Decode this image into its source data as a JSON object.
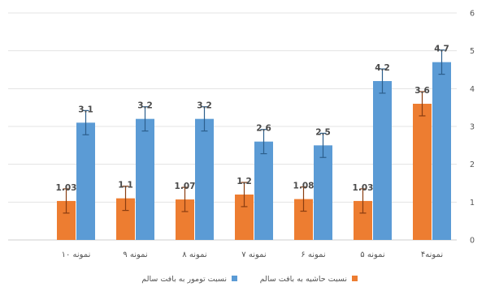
{
  "chart_data": {
    "type": "bar",
    "categories": [
      "نمونه ۴",
      "نمونه ۵",
      "نمونه ۶",
      "نمونه ۷",
      "نمونه ۸",
      "نمونه ۹",
      "نمونه ۱۰"
    ],
    "category_labels": [
      "نمونه۴",
      "نمونه ۵",
      "نمونه ۶",
      "نمونه ۷",
      "نمونه ۸",
      "نمونه ۹",
      "نمونه ۱۰"
    ],
    "series": [
      {
        "name": "نسبت حاشیه به بافت سالم",
        "color": "#ed7d31",
        "values": [
          3.6,
          1.03,
          1.08,
          1.2,
          1.07,
          1.1,
          1.03
        ],
        "labels": [
          "3.6",
          "1.03",
          "1.08",
          "1.2",
          "1.07",
          "1.1",
          "1.03"
        ]
      },
      {
        "name": "نسبت تومور به بافت سالم",
        "color": "#5b9bd5",
        "values": [
          4.7,
          4.2,
          2.5,
          2.6,
          3.2,
          3.2,
          3.1
        ],
        "labels": [
          "4.7",
          "4.2",
          "2.5",
          "2.6",
          "3.2",
          "3.2",
          "3.1"
        ]
      }
    ],
    "error_bars": true,
    "ylim": [
      0,
      6
    ],
    "yticks": [
      0,
      1,
      2,
      3,
      4,
      5,
      6
    ],
    "ytick_labels": [
      "0",
      "1",
      "2",
      "3",
      "4",
      "5",
      "6"
    ],
    "yaxis_side": "right",
    "category_order": "right-to-left",
    "grid": "horizontal",
    "legend_position": "bottom",
    "title": "",
    "xlabel": "",
    "ylabel": ""
  }
}
